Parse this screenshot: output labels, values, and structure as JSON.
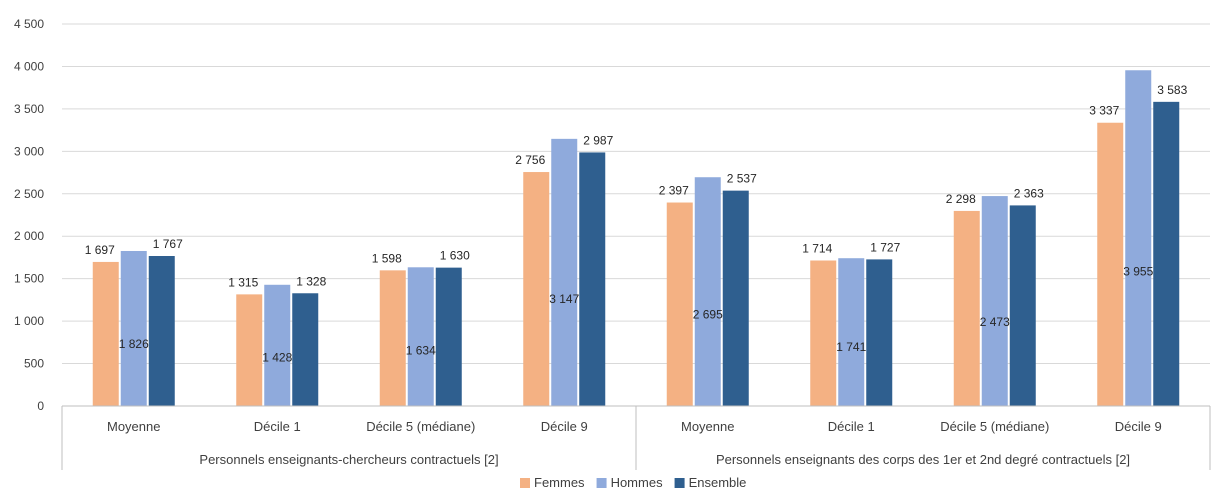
{
  "chart_data": {
    "type": "bar",
    "title": "",
    "xlabel": "",
    "ylabel": "",
    "ylim": [
      0,
      4500
    ],
    "yticks": [
      0,
      500,
      1000,
      1500,
      2000,
      2500,
      3000,
      3500,
      4000,
      4500
    ],
    "ytick_labels": [
      "0",
      "500",
      "1 000",
      "1 500",
      "2 000",
      "2 500",
      "3 000",
      "3 500",
      "4 000",
      "4 500"
    ],
    "grid": true,
    "legend_position": "bottom",
    "groups": [
      {
        "name": "Personnels enseignants-chercheurs contractuels [2]",
        "categories": [
          "Moyenne",
          "Décile 1",
          "Décile 5 (médiane)",
          "Décile 9"
        ]
      },
      {
        "name": "Personnels enseignants des corps des 1er et 2nd degré contractuels [2]",
        "categories": [
          "Moyenne",
          "Décile 1",
          "Décile 5 (médiane)",
          "Décile 9"
        ]
      }
    ],
    "categories": [
      "Moyenne",
      "Décile 1",
      "Décile 5 (médiane)",
      "Décile 9",
      "Moyenne",
      "Décile 1",
      "Décile 5 (médiane)",
      "Décile 9"
    ],
    "series": [
      {
        "name": "Femmes",
        "color": "#F4B183",
        "values": [
          1697,
          1315,
          1598,
          2756,
          2397,
          1714,
          2298,
          3337
        ],
        "labels": [
          "1 697",
          "1 315",
          "1 598",
          "2 756",
          "2 397",
          "1 714",
          "2 298",
          "3 337"
        ]
      },
      {
        "name": "Hommes",
        "color": "#8FAADC",
        "values": [
          1826,
          1428,
          1634,
          3147,
          2695,
          1741,
          2473,
          3955
        ],
        "labels": [
          "1 826",
          "1 428",
          "1 634",
          "3 147",
          "2 695",
          "1 741",
          "2 473",
          "3 955"
        ]
      },
      {
        "name": "Ensemble",
        "color": "#2F5F8F",
        "values": [
          1767,
          1328,
          1630,
          2987,
          2537,
          1727,
          2363,
          3583
        ],
        "labels": [
          "1 767",
          "1 328",
          "1 630",
          "2 987",
          "2 537",
          "1 727",
          "2 363",
          "3 583"
        ]
      }
    ]
  }
}
